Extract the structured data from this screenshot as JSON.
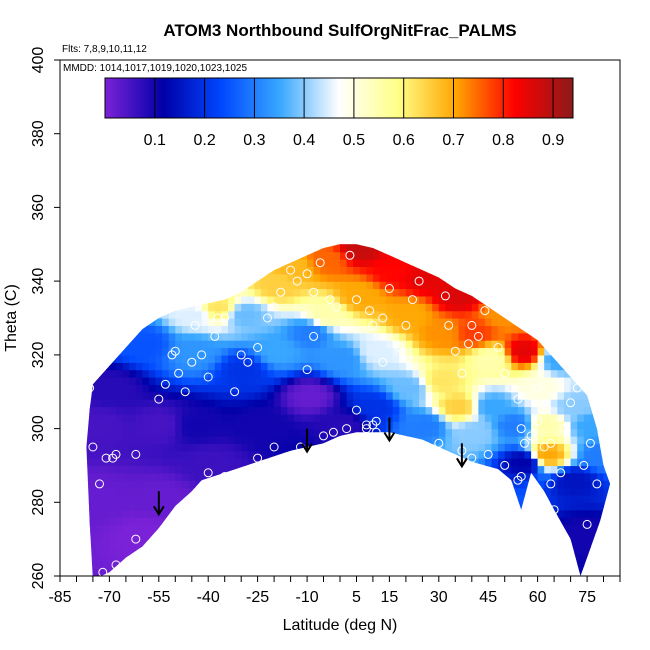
{
  "chart_data": {
    "type": "heatmap",
    "title": "ATOM3 Northbound SulfOrgNitFrac_PALMS",
    "subtitle_flights": "Flts: 7,8,9,10,11,12",
    "subtitle_dates": "MMDD: 1014,1017,1019,1020,1023,1025",
    "xlabel": "Latitude (deg N)",
    "ylabel": "Theta (C)",
    "xlim": [
      -85,
      85
    ],
    "ylim": [
      260,
      400
    ],
    "x_ticks": [
      -85,
      -70,
      -55,
      -40,
      -25,
      -10,
      5,
      15,
      30,
      45,
      60,
      75
    ],
    "x_tick_labels": [
      "-85",
      "-70",
      "-55",
      "-40",
      "-25",
      "-10",
      "5",
      "15",
      "30",
      "45",
      "60",
      "75"
    ],
    "y_ticks": [
      260,
      280,
      300,
      320,
      340,
      360,
      380,
      400
    ],
    "y_tick_labels": [
      "260",
      "280",
      "300",
      "320",
      "340",
      "360",
      "380",
      "400"
    ],
    "colorbar": {
      "range": [
        0,
        0.94
      ],
      "ticks": [
        0.1,
        0.2,
        0.3,
        0.4,
        0.5,
        0.6,
        0.7,
        0.8,
        0.9
      ],
      "tick_labels": [
        "0.1",
        "0.2",
        "0.3",
        "0.4",
        "0.5",
        "0.6",
        "0.7",
        "0.8",
        "0.9"
      ],
      "colors": [
        "#7b22d8",
        "#0000a8",
        "#0048ff",
        "#3aa8ff",
        "#ffffff",
        "#ffff88",
        "#ffa500",
        "#ff0000",
        "#8b1a1a"
      ]
    },
    "upper_boundary": [
      [
        -75,
        312
      ],
      [
        -70,
        317
      ],
      [
        -65,
        322
      ],
      [
        -60,
        327
      ],
      [
        -55,
        330
      ],
      [
        -50,
        332
      ],
      [
        -45,
        333
      ],
      [
        -40,
        334
      ],
      [
        -35,
        335
      ],
      [
        -30,
        337
      ],
      [
        -25,
        340
      ],
      [
        -20,
        343
      ],
      [
        -15,
        345
      ],
      [
        -10,
        347
      ],
      [
        -5,
        349
      ],
      [
        0,
        350
      ],
      [
        5,
        350
      ],
      [
        10,
        349
      ],
      [
        15,
        347
      ],
      [
        20,
        345
      ],
      [
        25,
        343
      ],
      [
        30,
        341
      ],
      [
        35,
        338
      ],
      [
        40,
        336
      ],
      [
        45,
        333
      ],
      [
        50,
        330
      ],
      [
        55,
        327
      ],
      [
        60,
        324
      ],
      [
        65,
        319
      ],
      [
        70,
        314
      ],
      [
        75,
        309
      ],
      [
        78,
        300
      ],
      [
        80,
        290
      ],
      [
        82,
        285
      ]
    ],
    "lower_boundary": [
      [
        82,
        285
      ],
      [
        79,
        275
      ],
      [
        75,
        265
      ],
      [
        73,
        260
      ],
      [
        70,
        270
      ],
      [
        65,
        278
      ],
      [
        62,
        283
      ],
      [
        58,
        288
      ],
      [
        55,
        278
      ],
      [
        52,
        286
      ],
      [
        48,
        289
      ],
      [
        40,
        291
      ],
      [
        35,
        293
      ],
      [
        30,
        295
      ],
      [
        25,
        297
      ],
      [
        15,
        299
      ],
      [
        5,
        299
      ],
      [
        0,
        298
      ],
      [
        -5,
        296
      ],
      [
        -15,
        294
      ],
      [
        -25,
        291
      ],
      [
        -35,
        288
      ],
      [
        -42,
        286
      ],
      [
        -45,
        283
      ],
      [
        -50,
        279
      ],
      [
        -55,
        273
      ],
      [
        -60,
        268
      ],
      [
        -65,
        265
      ],
      [
        -70,
        261
      ],
      [
        -75,
        259
      ],
      [
        -76,
        275
      ],
      [
        -77,
        295
      ],
      [
        -76,
        305
      ]
    ],
    "field_anchors": [
      {
        "x": -75,
        "y": 280,
        "v": 0.02
      },
      {
        "x": -75,
        "y": 300,
        "v": 0.05
      },
      {
        "x": -70,
        "y": 310,
        "v": 0.08
      },
      {
        "x": -60,
        "y": 322,
        "v": 0.25
      },
      {
        "x": -55,
        "y": 300,
        "v": 0.05
      },
      {
        "x": -55,
        "y": 280,
        "v": 0.02
      },
      {
        "x": -60,
        "y": 270,
        "v": 0.0
      },
      {
        "x": -45,
        "y": 300,
        "v": 0.1
      },
      {
        "x": -45,
        "y": 320,
        "v": 0.33
      },
      {
        "x": -45,
        "y": 330,
        "v": 0.45
      },
      {
        "x": -38,
        "y": 332,
        "v": 0.62
      },
      {
        "x": -40,
        "y": 290,
        "v": 0.06
      },
      {
        "x": -30,
        "y": 315,
        "v": 0.2
      },
      {
        "x": -30,
        "y": 330,
        "v": 0.38
      },
      {
        "x": -25,
        "y": 300,
        "v": 0.1
      },
      {
        "x": -20,
        "y": 338,
        "v": 0.65
      },
      {
        "x": -20,
        "y": 320,
        "v": 0.35
      },
      {
        "x": -15,
        "y": 343,
        "v": 0.68
      },
      {
        "x": -10,
        "y": 308,
        "v": 0.02
      },
      {
        "x": -10,
        "y": 325,
        "v": 0.3
      },
      {
        "x": -5,
        "y": 345,
        "v": 0.75
      },
      {
        "x": -5,
        "y": 330,
        "v": 0.55
      },
      {
        "x": 0,
        "y": 300,
        "v": 0.08
      },
      {
        "x": 0,
        "y": 318,
        "v": 0.33
      },
      {
        "x": 5,
        "y": 348,
        "v": 0.88
      },
      {
        "x": 5,
        "y": 335,
        "v": 0.7
      },
      {
        "x": 10,
        "y": 320,
        "v": 0.45
      },
      {
        "x": 10,
        "y": 305,
        "v": 0.2
      },
      {
        "x": 15,
        "y": 342,
        "v": 0.82
      },
      {
        "x": 20,
        "y": 310,
        "v": 0.38
      },
      {
        "x": 20,
        "y": 330,
        "v": 0.7
      },
      {
        "x": 25,
        "y": 340,
        "v": 0.85
      },
      {
        "x": 25,
        "y": 300,
        "v": 0.3
      },
      {
        "x": 30,
        "y": 325,
        "v": 0.72
      },
      {
        "x": 30,
        "y": 312,
        "v": 0.62
      },
      {
        "x": 35,
        "y": 305,
        "v": 0.65
      },
      {
        "x": 35,
        "y": 335,
        "v": 0.86
      },
      {
        "x": 40,
        "y": 325,
        "v": 0.78
      },
      {
        "x": 40,
        "y": 298,
        "v": 0.4
      },
      {
        "x": 45,
        "y": 318,
        "v": 0.55
      },
      {
        "x": 45,
        "y": 305,
        "v": 0.35
      },
      {
        "x": 48,
        "y": 330,
        "v": 0.72
      },
      {
        "x": 55,
        "y": 320,
        "v": 0.85
      },
      {
        "x": 52,
        "y": 300,
        "v": 0.3
      },
      {
        "x": 55,
        "y": 290,
        "v": 0.12
      },
      {
        "x": 60,
        "y": 310,
        "v": 0.5
      },
      {
        "x": 62,
        "y": 300,
        "v": 0.55
      },
      {
        "x": 62,
        "y": 292,
        "v": 0.7
      },
      {
        "x": 65,
        "y": 318,
        "v": 0.35
      },
      {
        "x": 70,
        "y": 305,
        "v": 0.4
      },
      {
        "x": 70,
        "y": 285,
        "v": 0.15
      },
      {
        "x": 75,
        "y": 300,
        "v": 0.35
      },
      {
        "x": 78,
        "y": 292,
        "v": 0.3
      },
      {
        "x": 73,
        "y": 270,
        "v": 0.1
      }
    ],
    "sample_points": [
      [
        -76,
        311
      ],
      [
        -75,
        295
      ],
      [
        -73,
        285
      ],
      [
        -71,
        292
      ],
      [
        -69,
        292
      ],
      [
        -68,
        293
      ],
      [
        -62,
        293
      ],
      [
        -72,
        261
      ],
      [
        -68,
        263
      ],
      [
        -62,
        270
      ],
      [
        -55,
        308
      ],
      [
        -53,
        312
      ],
      [
        -51,
        320
      ],
      [
        -50,
        321
      ],
      [
        -49,
        315
      ],
      [
        -47,
        310
      ],
      [
        -45,
        318
      ],
      [
        -44,
        328
      ],
      [
        -42,
        320
      ],
      [
        -40,
        314
      ],
      [
        -38,
        325
      ],
      [
        -37,
        330
      ],
      [
        -35,
        330
      ],
      [
        -30,
        320
      ],
      [
        -32,
        310
      ],
      [
        -28,
        318
      ],
      [
        -25,
        322
      ],
      [
        -22,
        330
      ],
      [
        -20,
        333
      ],
      [
        -18,
        337
      ],
      [
        -15,
        343
      ],
      [
        -13,
        340
      ],
      [
        -10,
        342
      ],
      [
        -8,
        337
      ],
      [
        -6,
        345
      ],
      [
        -3,
        335
      ],
      [
        -1,
        333
      ],
      [
        -40,
        288
      ],
      [
        -35,
        287
      ],
      [
        -25,
        292
      ],
      [
        -20,
        295
      ],
      [
        -12,
        295
      ],
      [
        -10,
        316
      ],
      [
        -8,
        325
      ],
      [
        -5,
        298
      ],
      [
        -2,
        299
      ],
      [
        2,
        300
      ],
      [
        5,
        305
      ],
      [
        8,
        300
      ],
      [
        8,
        301
      ],
      [
        10,
        301
      ],
      [
        11,
        302
      ],
      [
        11,
        299
      ],
      [
        3,
        347
      ],
      [
        5,
        335
      ],
      [
        9,
        332
      ],
      [
        10,
        328
      ],
      [
        13,
        330
      ],
      [
        13,
        318
      ],
      [
        15,
        338
      ],
      [
        18,
        322
      ],
      [
        20,
        328
      ],
      [
        22,
        335
      ],
      [
        24,
        340
      ],
      [
        27,
        345
      ],
      [
        30,
        343
      ],
      [
        32,
        336
      ],
      [
        33,
        328
      ],
      [
        35,
        321
      ],
      [
        37,
        315
      ],
      [
        39,
        323
      ],
      [
        40,
        328
      ],
      [
        42,
        325
      ],
      [
        44,
        332
      ],
      [
        46,
        337
      ],
      [
        48,
        322
      ],
      [
        50,
        315
      ],
      [
        52,
        311
      ],
      [
        54,
        308
      ],
      [
        55,
        300
      ],
      [
        56,
        296
      ],
      [
        58,
        298
      ],
      [
        60,
        302
      ],
      [
        60,
        311
      ],
      [
        62,
        295
      ],
      [
        64,
        296
      ],
      [
        64,
        285
      ],
      [
        65,
        278
      ],
      [
        67,
        288
      ],
      [
        68,
        300
      ],
      [
        70,
        307
      ],
      [
        72,
        311
      ],
      [
        74,
        290
      ],
      [
        75,
        274
      ],
      [
        76,
        296
      ],
      [
        78,
        285
      ],
      [
        30,
        296
      ],
      [
        37,
        294
      ],
      [
        40,
        292
      ],
      [
        45,
        293
      ],
      [
        50,
        290
      ],
      [
        54,
        286
      ],
      [
        55,
        287
      ]
    ],
    "arrows": [
      [
        -55,
        283
      ],
      [
        -10,
        300
      ],
      [
        15,
        303
      ],
      [
        37,
        296
      ]
    ]
  }
}
